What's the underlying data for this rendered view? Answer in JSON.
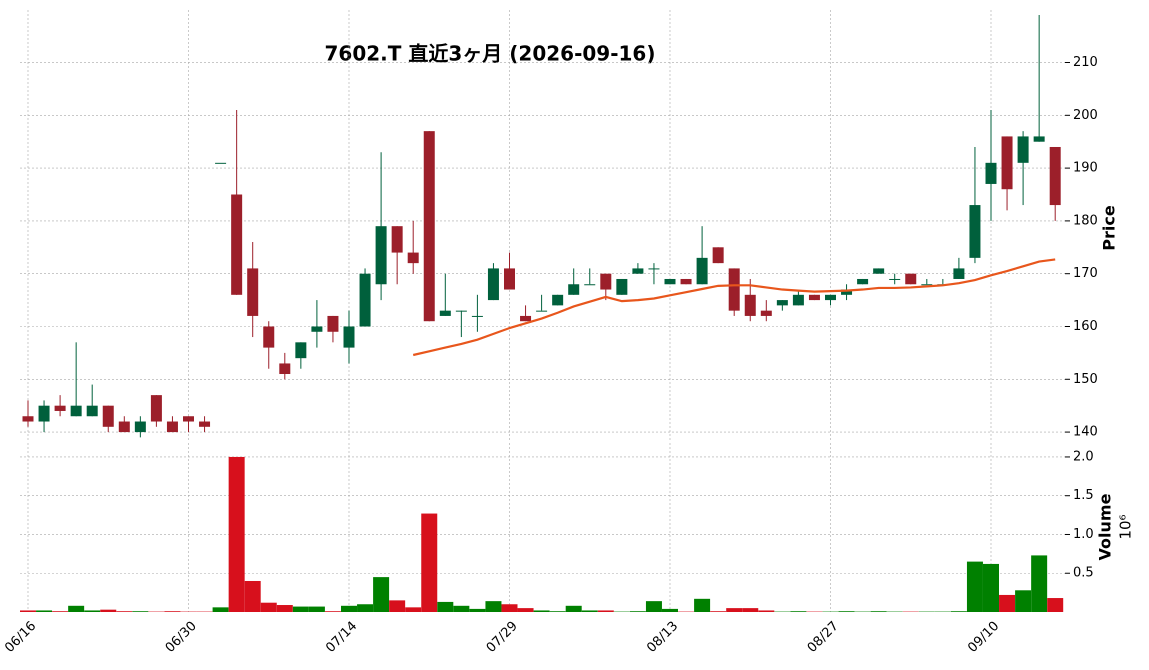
{
  "chart_data": {
    "type": "candlestick",
    "title": "7602.T  直近3ヶ月  (2026-09-16)",
    "ylabel": "Price",
    "categories": [
      "06/16",
      null,
      null,
      null,
      null,
      null,
      null,
      null,
      null,
      null,
      "06/30",
      null,
      null,
      null,
      null,
      null,
      null,
      null,
      null,
      null,
      "07/14",
      null,
      null,
      null,
      null,
      null,
      null,
      null,
      null,
      null,
      "07/29",
      null,
      null,
      null,
      null,
      null,
      null,
      null,
      null,
      null,
      "08/13",
      null,
      null,
      null,
      null,
      null,
      null,
      null,
      null,
      null,
      "08/27",
      null,
      null,
      null,
      null,
      null,
      null,
      null,
      null,
      null,
      "09/10",
      null,
      null,
      null,
      null
    ],
    "open": [
      143,
      142,
      145,
      143,
      143,
      145,
      142,
      140,
      147,
      142,
      143,
      142,
      191,
      185,
      171,
      160,
      153,
      154,
      159,
      162,
      156,
      160,
      168,
      179,
      174,
      197,
      162,
      163,
      162,
      165,
      171,
      162,
      163,
      164,
      166,
      168,
      170,
      166,
      170,
      171,
      168,
      169,
      168,
      175,
      171,
      166,
      163,
      164,
      164,
      166,
      165,
      166,
      168,
      170,
      169,
      170,
      168,
      168,
      169,
      173,
      187,
      196,
      191,
      195,
      194
    ],
    "high": [
      146,
      146,
      147,
      157,
      149,
      145,
      143,
      143,
      147,
      143,
      143,
      143,
      191,
      201,
      176,
      161,
      155,
      157,
      165,
      162,
      163,
      171,
      193,
      179,
      180,
      197,
      170,
      163,
      166,
      172,
      174,
      164,
      166,
      166,
      171,
      171,
      170,
      169,
      172,
      172,
      169,
      169,
      179,
      175,
      171,
      169,
      165,
      165,
      167,
      166,
      166,
      168,
      169,
      171,
      170,
      170,
      169,
      169,
      173,
      194,
      201,
      196,
      197,
      219,
      194
    ],
    "low": [
      141,
      140,
      143,
      143,
      143,
      140,
      140,
      139,
      141,
      140,
      140,
      140,
      191,
      166,
      158,
      152,
      150,
      152,
      156,
      157,
      153,
      160,
      165,
      168,
      170,
      161,
      162,
      158,
      159,
      165,
      167,
      161,
      163,
      164,
      166,
      168,
      165,
      166,
      170,
      168,
      168,
      168,
      168,
      172,
      162,
      161,
      161,
      163,
      164,
      165,
      164,
      165,
      168,
      170,
      168,
      168,
      168,
      168,
      169,
      172,
      180,
      182,
      183,
      195,
      180
    ],
    "close": [
      142,
      145,
      144,
      145,
      145,
      141,
      140,
      142,
      142,
      140,
      142,
      141,
      191,
      166,
      162,
      156,
      151,
      157,
      160,
      159,
      160,
      170,
      179,
      174,
      172,
      161,
      163,
      163,
      162,
      171,
      167,
      161,
      163,
      166,
      168,
      168,
      167,
      169,
      171,
      171,
      169,
      168,
      173,
      172,
      163,
      162,
      162,
      165,
      166,
      165,
      166,
      167,
      169,
      171,
      169,
      168,
      168,
      168,
      171,
      183,
      191,
      186,
      196,
      196,
      183
    ],
    "up_color": "#00603c",
    "down_color": "#9c1f2a",
    "ma": {
      "color": "#e8561c",
      "values": [
        null,
        null,
        null,
        null,
        null,
        null,
        null,
        null,
        null,
        null,
        null,
        null,
        null,
        null,
        null,
        null,
        null,
        null,
        null,
        null,
        null,
        null,
        null,
        null,
        154.6,
        155.3,
        156.0,
        156.7,
        157.5,
        158.6,
        159.7,
        160.6,
        161.5,
        162.6,
        163.8,
        164.7,
        165.6,
        164.8,
        165.0,
        165.3,
        165.9,
        166.5,
        167.1,
        167.7,
        167.8,
        167.8,
        167.4,
        167.0,
        166.8,
        166.6,
        166.7,
        166.8,
        167.0,
        167.3,
        167.3,
        167.4,
        167.6,
        167.8,
        168.2,
        168.8,
        169.7,
        170.5,
        171.4,
        172.3,
        172.7
      ]
    },
    "ylim": [
      138.5,
      219
    ],
    "yticks": [
      140,
      150,
      160,
      170,
      180,
      190,
      200,
      210
    ],
    "grid": true,
    "volume": {
      "label": "Volume",
      "multiplier": "10⁶",
      "up_color": "#008000",
      "down_color": "#d7101c",
      "values": [
        0.02,
        0.02,
        0.01,
        0.08,
        0.02,
        0.03,
        0.01,
        0.01,
        0.005,
        0.01,
        0.005,
        0.005,
        0.06,
        2.0,
        0.4,
        0.12,
        0.09,
        0.07,
        0.07,
        0.01,
        0.08,
        0.1,
        0.45,
        0.15,
        0.06,
        1.27,
        0.13,
        0.08,
        0.04,
        0.14,
        0.1,
        0.05,
        0.02,
        0.01,
        0.08,
        0.02,
        0.02,
        0.005,
        0.01,
        0.14,
        0.04,
        0.005,
        0.17,
        0.01,
        0.05,
        0.05,
        0.02,
        0.005,
        0.01,
        0.005,
        0.005,
        0.01,
        0.005,
        0.01,
        0.005,
        0.005,
        0.005,
        0.005,
        0.01,
        0.65,
        0.62,
        0.22,
        0.28,
        0.73,
        0.18
      ],
      "ylim": [
        0,
        2.18
      ],
      "yticks": [
        0.5,
        {
          "value": 1.0,
          "label": "1.0"
        },
        1.5,
        {
          "value": 2.0,
          "label": "2.0"
        }
      ]
    }
  }
}
